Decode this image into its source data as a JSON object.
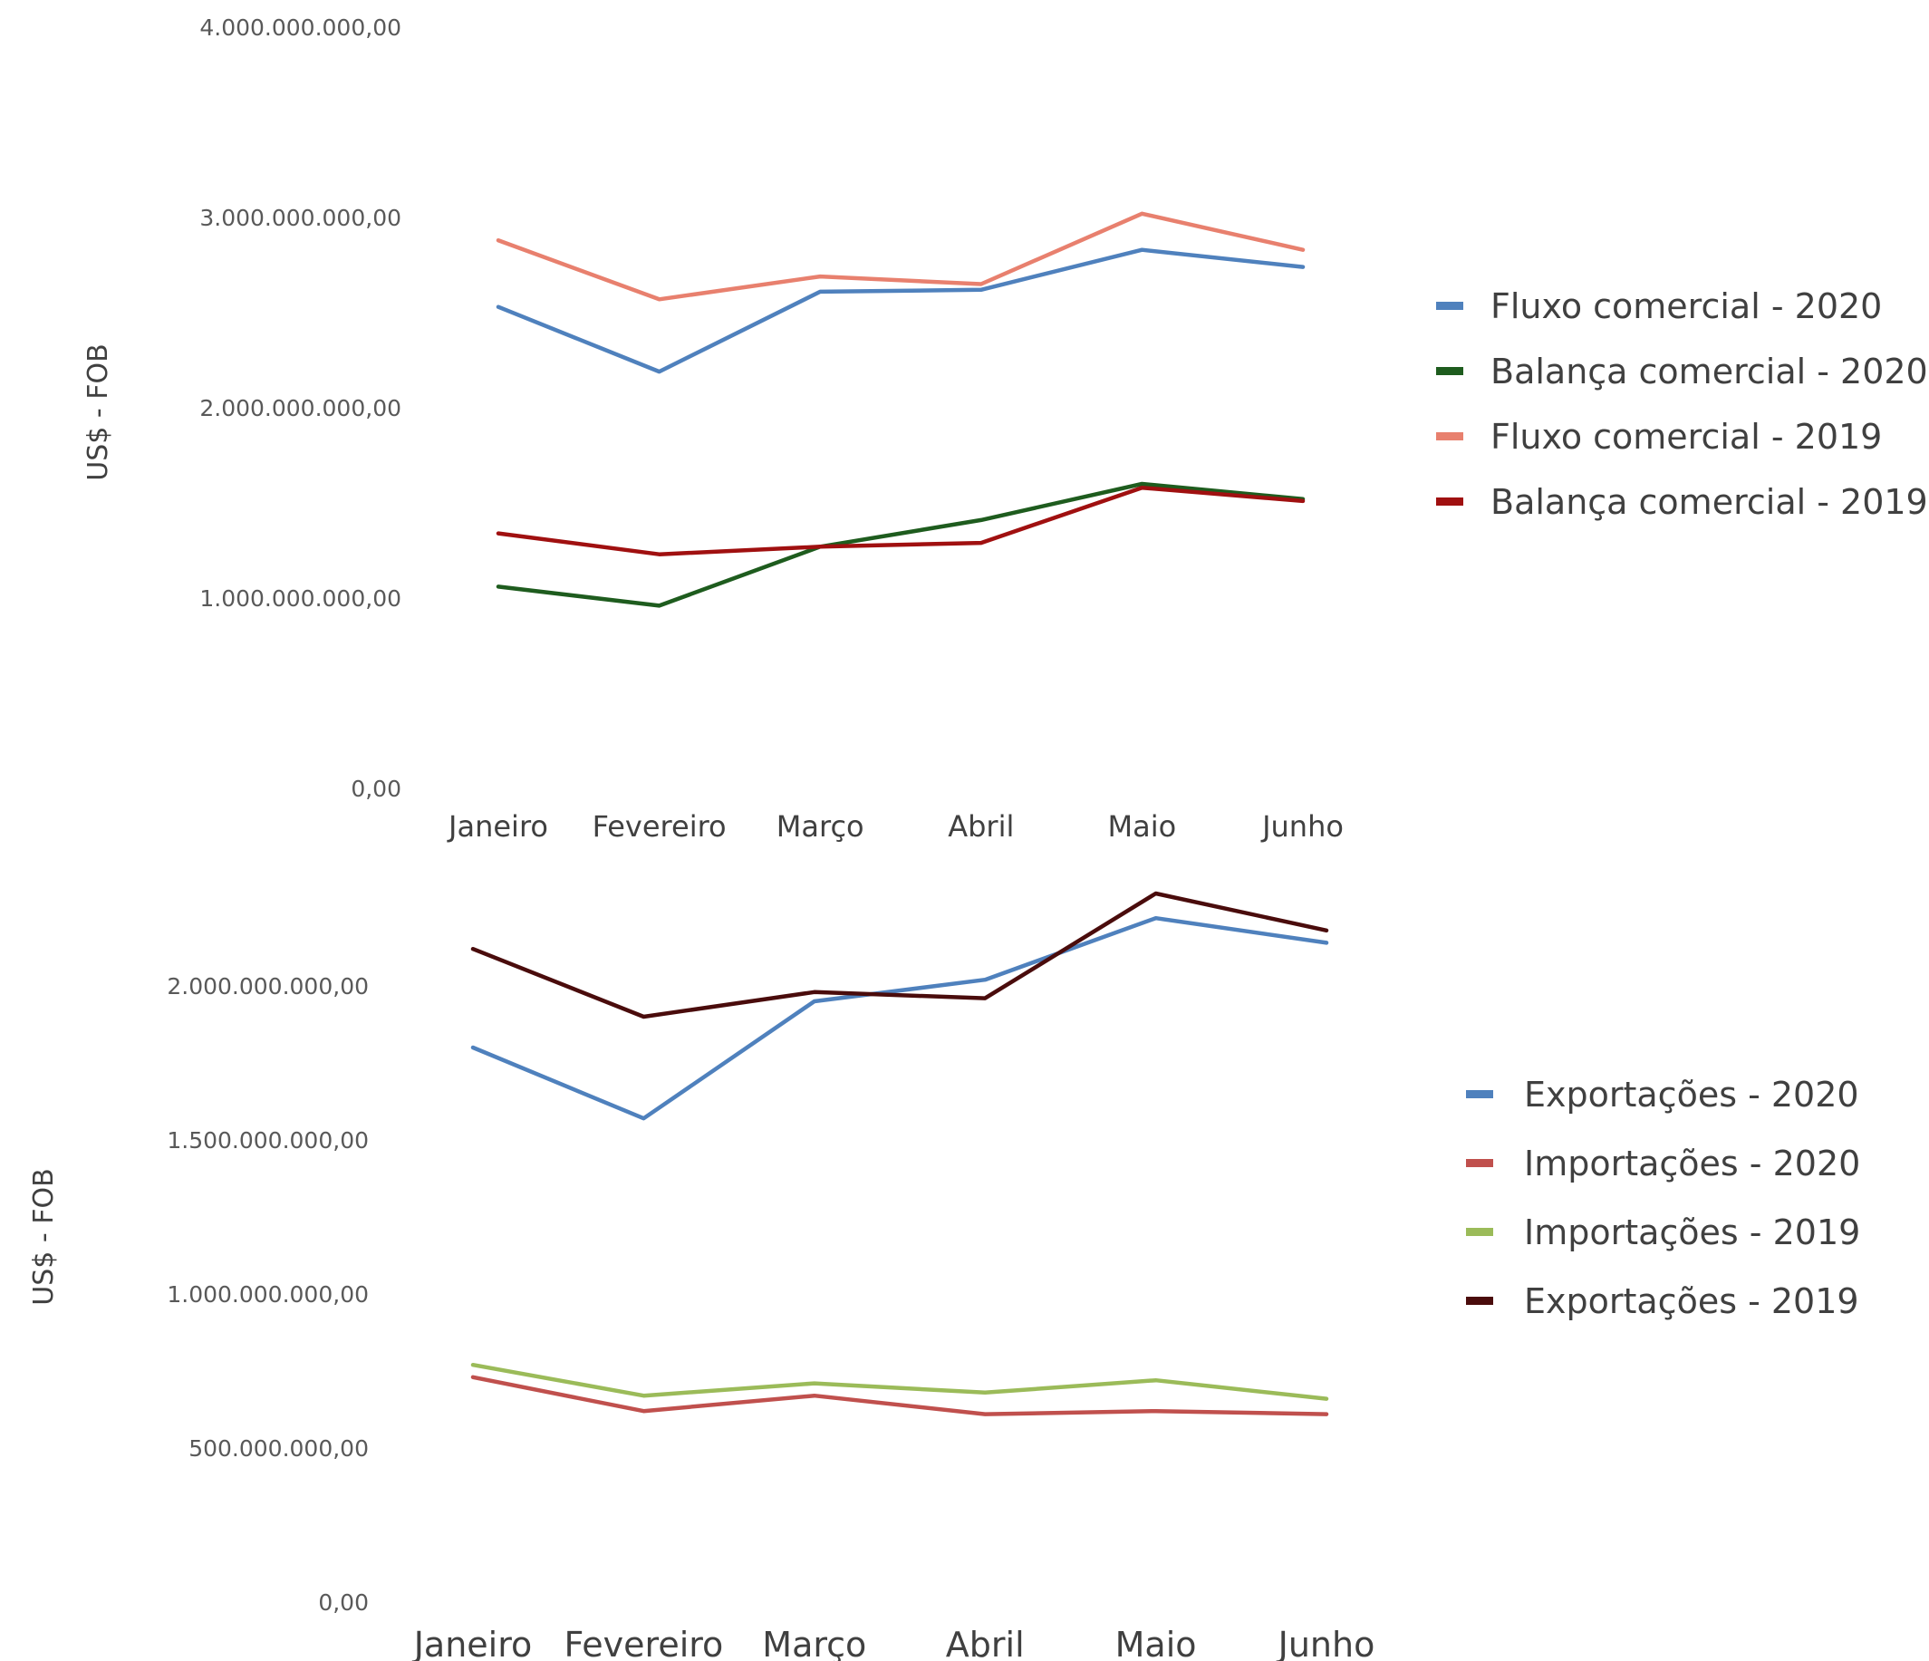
{
  "chart_data": [
    {
      "type": "line",
      "ylabel": "US$ - FOB",
      "ylim": [
        0,
        4000000000
      ],
      "y_ticks": [
        "0,00",
        "1.000.000.000,00",
        "2.000.000.000,00",
        "3.000.000.000,00",
        "4.000.000.000,00"
      ],
      "categories": [
        "Janeiro",
        "Fevereiro",
        "Março",
        "Abril",
        "Maio",
        "Junho"
      ],
      "grid": false,
      "legend_position": "right",
      "series": [
        {
          "name": "Fluxo comercial - 2020",
          "color": "#4F81BD",
          "values": [
            2530000000,
            2190000000,
            2610000000,
            2620000000,
            2830000000,
            2740000000
          ]
        },
        {
          "name": "Balança comercial - 2020",
          "color": "#1E5C1E",
          "values": [
            1060000000,
            960000000,
            1270000000,
            1410000000,
            1600000000,
            1520000000
          ]
        },
        {
          "name": "Fluxo comercial - 2019",
          "color": "#E8806E",
          "values": [
            2880000000,
            2570000000,
            2690000000,
            2650000000,
            3020000000,
            2830000000
          ]
        },
        {
          "name": "Balança comercial - 2019",
          "color": "#A01010",
          "values": [
            1340000000,
            1230000000,
            1270000000,
            1290000000,
            1580000000,
            1510000000
          ]
        }
      ]
    },
    {
      "type": "line",
      "ylabel": "US$ - FOB",
      "ylim": [
        0,
        2500000000
      ],
      "y_ticks": [
        "0,00",
        "500.000.000,00",
        "1.000.000.000,00",
        "1.500.000.000,00",
        "2.000.000.000,00"
      ],
      "categories": [
        "Janeiro",
        "Fevereiro",
        "Março",
        "Abril",
        "Maio",
        "Junho"
      ],
      "grid": false,
      "legend_position": "right",
      "series": [
        {
          "name": "Exportações - 2020",
          "color": "#4F81BD",
          "values": [
            1800000000,
            1570000000,
            1950000000,
            2020000000,
            2220000000,
            2140000000
          ]
        },
        {
          "name": "Importações - 2020",
          "color": "#C0504D",
          "values": [
            730000000,
            620000000,
            670000000,
            610000000,
            620000000,
            610000000
          ]
        },
        {
          "name": "Importações - 2019",
          "color": "#9BBB59",
          "values": [
            770000000,
            670000000,
            710000000,
            680000000,
            720000000,
            660000000
          ]
        },
        {
          "name": "Exportações - 2019",
          "color": "#4A0C0C",
          "values": [
            2120000000,
            1900000000,
            1980000000,
            1960000000,
            2300000000,
            2180000000
          ]
        }
      ]
    }
  ]
}
